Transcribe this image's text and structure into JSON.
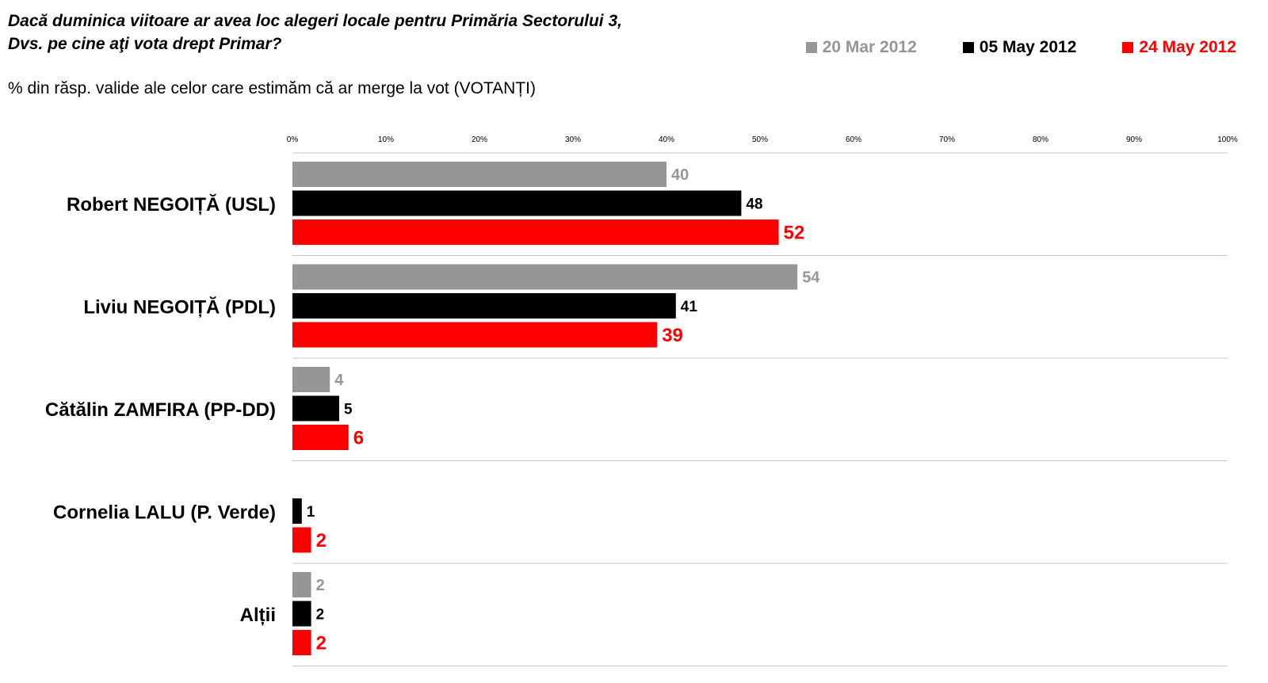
{
  "title_line1": "Dacă duminica viitoare ar avea loc alegeri locale pentru Primăria Sectorului 3,",
  "title_line2": "Dvs. pe cine aţi vota drept Primar?",
  "subtitle": "% din răsp. valide ale celor care estimăm că ar merge la vot (VOTANȚI)",
  "chart_data": {
    "type": "bar",
    "orientation": "horizontal",
    "categories": [
      "Robert NEGOIȚĂ (USL)",
      "Liviu NEGOIȚĂ (PDL)",
      "Cătălin ZAMFIRA (PP-DD)",
      "Cornelia LALU (P. Verde)",
      "Alții"
    ],
    "series": [
      {
        "name": "20 Mar 2012",
        "color": "#969696",
        "values": [
          40,
          54,
          4,
          null,
          2
        ]
      },
      {
        "name": "05 May 2012",
        "color": "#000000",
        "values": [
          48,
          41,
          5,
          1,
          2
        ]
      },
      {
        "name": "24 May 2012",
        "color": "#ff0000",
        "values": [
          52,
          39,
          6,
          2,
          2
        ]
      }
    ],
    "xlim": [
      0,
      100
    ],
    "xticks": [
      "0%",
      "10%",
      "20%",
      "30%",
      "40%",
      "50%",
      "60%",
      "70%",
      "80%",
      "90%",
      "100%"
    ],
    "legend": "top-right",
    "grid": false
  }
}
